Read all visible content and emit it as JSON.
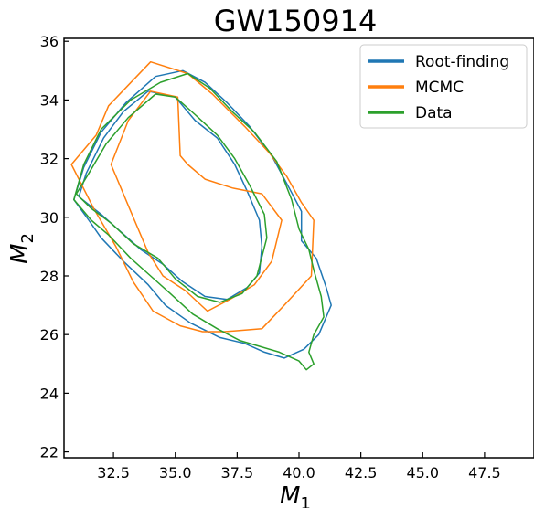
{
  "chart_data": {
    "type": "line",
    "title": "GW150914",
    "xlabel": {
      "main": "M",
      "sub": "1"
    },
    "ylabel": {
      "main": "M",
      "sub": "2"
    },
    "xlim": [
      30.5,
      49.5
    ],
    "ylim": [
      21.8,
      36.1
    ],
    "xticks": [
      "32.5",
      "35.0",
      "37.5",
      "40.0",
      "42.5",
      "45.0",
      "47.5"
    ],
    "yticks": [
      "22",
      "24",
      "26",
      "28",
      "30",
      "32",
      "34",
      "36"
    ],
    "legend_position": "top-right",
    "grid": false,
    "series": [
      {
        "name": "Root-finding",
        "color": "#1f77b4",
        "contours": [
          [
            [
              31.1,
              30.7
            ],
            [
              31.4,
              31.5
            ],
            [
              32.1,
              32.7
            ],
            [
              32.9,
              33.6
            ],
            [
              33.9,
              34.3
            ],
            [
              35.0,
              34.1
            ],
            [
              35.8,
              33.3
            ],
            [
              36.7,
              32.7
            ],
            [
              37.4,
              31.8
            ],
            [
              37.9,
              30.9
            ],
            [
              38.4,
              29.9
            ],
            [
              38.5,
              29.0
            ],
            [
              38.4,
              28.1
            ],
            [
              37.9,
              27.6
            ],
            [
              37.1,
              27.2
            ],
            [
              36.2,
              27.3
            ],
            [
              35.3,
              27.8
            ],
            [
              34.5,
              28.4
            ],
            [
              33.6,
              28.9
            ],
            [
              32.8,
              29.5
            ],
            [
              32.0,
              30.1
            ],
            [
              31.1,
              30.7
            ]
          ],
          [
            [
              30.9,
              30.6
            ],
            [
              31.3,
              31.7
            ],
            [
              32.0,
              32.9
            ],
            [
              33.0,
              33.9
            ],
            [
              34.2,
              34.8
            ],
            [
              35.3,
              35.0
            ],
            [
              36.2,
              34.6
            ],
            [
              37.1,
              33.9
            ],
            [
              38.0,
              33.1
            ],
            [
              38.9,
              32.1
            ],
            [
              39.6,
              31.0
            ],
            [
              40.1,
              30.2
            ],
            [
              40.1,
              29.2
            ],
            [
              40.7,
              28.6
            ],
            [
              41.1,
              27.6
            ],
            [
              41.3,
              27.0
            ],
            [
              40.8,
              26.0
            ],
            [
              40.2,
              25.5
            ],
            [
              39.4,
              25.2
            ],
            [
              38.6,
              25.4
            ],
            [
              37.8,
              25.7
            ],
            [
              36.8,
              25.9
            ],
            [
              35.6,
              26.4
            ],
            [
              34.6,
              27.0
            ],
            [
              33.9,
              27.7
            ],
            [
              32.9,
              28.5
            ],
            [
              32.0,
              29.3
            ],
            [
              31.5,
              29.9
            ],
            [
              30.9,
              30.6
            ]
          ]
        ]
      },
      {
        "name": "MCMC",
        "color": "#ff7f0e",
        "contours": [
          [
            [
              32.4,
              31.8
            ],
            [
              33.1,
              33.3
            ],
            [
              34.0,
              34.3
            ],
            [
              35.1,
              34.1
            ],
            [
              35.2,
              32.1
            ],
            [
              35.5,
              31.8
            ],
            [
              36.2,
              31.3
            ],
            [
              37.3,
              31.0
            ],
            [
              38.5,
              30.8
            ],
            [
              39.3,
              29.9
            ],
            [
              38.9,
              28.5
            ],
            [
              38.2,
              27.7
            ],
            [
              37.2,
              27.2
            ],
            [
              36.3,
              26.8
            ],
            [
              35.4,
              27.5
            ],
            [
              34.5,
              28.0
            ],
            [
              33.9,
              28.8
            ],
            [
              33.2,
              30.2
            ],
            [
              32.4,
              31.8
            ]
          ],
          [
            [
              30.8,
              31.8
            ],
            [
              31.8,
              32.8
            ],
            [
              32.3,
              33.8
            ],
            [
              34.0,
              35.3
            ],
            [
              35.5,
              34.9
            ],
            [
              36.5,
              34.2
            ],
            [
              37.8,
              33.1
            ],
            [
              38.8,
              32.2
            ],
            [
              39.5,
              31.4
            ],
            [
              40.1,
              30.5
            ],
            [
              40.6,
              29.9
            ],
            [
              40.5,
              28.0
            ],
            [
              39.4,
              27.0
            ],
            [
              38.5,
              26.2
            ],
            [
              37.0,
              26.1
            ],
            [
              36.1,
              26.1
            ],
            [
              35.2,
              26.3
            ],
            [
              34.1,
              26.8
            ],
            [
              33.3,
              27.8
            ],
            [
              32.6,
              29.0
            ],
            [
              31.7,
              30.3
            ],
            [
              30.8,
              31.8
            ]
          ]
        ]
      },
      {
        "name": "Data",
        "color": "#2ca02c",
        "contours": [
          [
            [
              31.0,
              30.8
            ],
            [
              31.5,
              31.5
            ],
            [
              32.2,
              32.5
            ],
            [
              33.1,
              33.4
            ],
            [
              34.2,
              34.2
            ],
            [
              35.0,
              34.1
            ],
            [
              35.8,
              33.5
            ],
            [
              36.7,
              32.8
            ],
            [
              37.4,
              32.0
            ],
            [
              38.0,
              31.1
            ],
            [
              38.6,
              30.1
            ],
            [
              38.7,
              29.3
            ],
            [
              38.3,
              28.0
            ],
            [
              37.7,
              27.4
            ],
            [
              36.8,
              27.1
            ],
            [
              35.9,
              27.3
            ],
            [
              35.0,
              27.9
            ],
            [
              34.3,
              28.6
            ],
            [
              33.3,
              29.1
            ],
            [
              32.4,
              29.8
            ],
            [
              31.6,
              30.3
            ],
            [
              31.0,
              30.8
            ]
          ],
          [
            [
              30.9,
              30.6
            ],
            [
              31.3,
              31.8
            ],
            [
              32.0,
              33.0
            ],
            [
              33.2,
              34.0
            ],
            [
              34.4,
              34.6
            ],
            [
              35.5,
              34.9
            ],
            [
              36.4,
              34.4
            ],
            [
              37.3,
              33.6
            ],
            [
              38.2,
              32.9
            ],
            [
              39.1,
              31.9
            ],
            [
              39.7,
              30.6
            ],
            [
              40.0,
              29.6
            ],
            [
              40.4,
              28.9
            ],
            [
              40.6,
              28.2
            ],
            [
              40.9,
              27.3
            ],
            [
              41.0,
              26.6
            ],
            [
              40.6,
              26.0
            ],
            [
              40.4,
              25.4
            ],
            [
              40.6,
              25.0
            ],
            [
              40.3,
              24.8
            ],
            [
              40.0,
              25.1
            ],
            [
              39.2,
              25.4
            ],
            [
              38.4,
              25.6
            ],
            [
              37.6,
              25.8
            ],
            [
              36.7,
              26.2
            ],
            [
              35.7,
              26.7
            ],
            [
              34.8,
              27.4
            ],
            [
              34.0,
              28.0
            ],
            [
              33.2,
              28.6
            ],
            [
              32.3,
              29.4
            ],
            [
              31.6,
              29.9
            ],
            [
              30.9,
              30.6
            ]
          ]
        ]
      }
    ]
  }
}
